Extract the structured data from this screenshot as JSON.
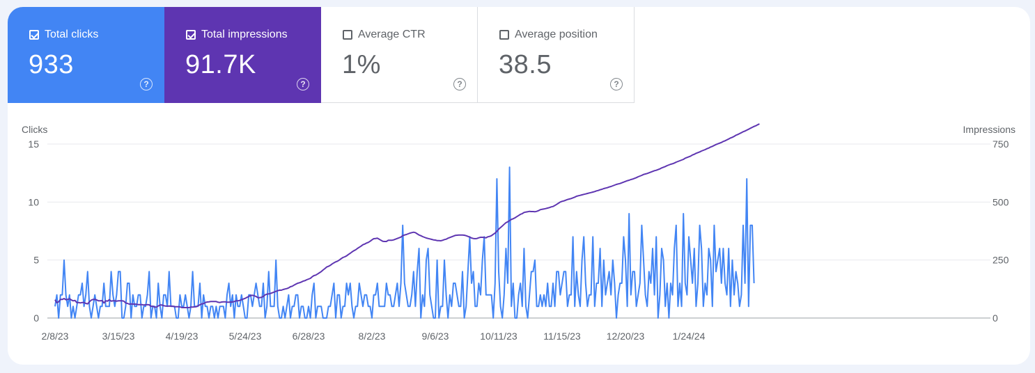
{
  "metrics": [
    {
      "label": "Total clicks",
      "value": "933",
      "checked": true,
      "color": "#4285f4"
    },
    {
      "label": "Total impressions",
      "value": "91.7K",
      "checked": true,
      "color": "#5e35b1"
    },
    {
      "label": "Average CTR",
      "value": "1%",
      "checked": false,
      "color": "#ffffff"
    },
    {
      "label": "Average position",
      "value": "38.5",
      "checked": false,
      "color": "#ffffff"
    }
  ],
  "help_icon": "question-circle-icon",
  "chart_data": {
    "type": "line",
    "ylabel_left": "Clicks",
    "ylabel_right": "Impressions",
    "y_left_ticks": [
      "0",
      "5",
      "10",
      "15"
    ],
    "y_right_ticks": [
      "0",
      "250",
      "500",
      "750"
    ],
    "ylim_left": [
      0,
      15
    ],
    "ylim_right": [
      0,
      750
    ],
    "x_start": "2/8/23",
    "x_tick_labels": [
      "2/8/23",
      "3/15/23",
      "4/19/23",
      "5/24/23",
      "6/28/23",
      "8/2/23",
      "9/6/23",
      "10/11/23",
      "11/15/23",
      "12/20/23",
      "1/24/24"
    ],
    "grid": true,
    "series": [
      {
        "name": "Clicks",
        "axis": "left",
        "color": "#4285f4",
        "values": [
          1,
          2,
          0,
          2,
          2,
          5,
          2,
          1,
          2,
          0,
          1,
          0,
          1,
          2,
          2,
          3,
          1,
          2,
          4,
          1,
          0,
          1,
          2,
          1,
          0,
          1,
          1,
          3,
          1,
          1,
          1,
          4,
          2,
          1,
          2,
          4,
          4,
          0,
          0,
          1,
          3,
          3,
          0,
          2,
          1,
          1,
          2,
          2,
          0,
          1,
          1,
          2,
          4,
          0,
          1,
          1,
          0,
          3,
          1,
          0,
          2,
          2,
          1,
          4,
          1,
          1,
          1,
          0,
          0,
          2,
          1,
          1,
          2,
          1,
          0,
          1,
          4,
          1,
          1,
          1,
          3,
          0,
          2,
          1,
          1,
          0,
          1,
          1,
          0,
          1,
          0,
          1,
          1,
          1,
          0,
          2,
          3,
          1,
          2,
          0,
          2,
          1,
          1,
          2,
          1,
          0,
          0,
          2,
          2,
          1,
          2,
          3,
          2,
          1,
          1,
          3,
          0,
          1,
          4,
          1,
          1,
          1,
          5,
          1,
          0,
          0,
          1,
          0,
          1,
          2,
          0,
          1,
          1,
          2,
          2,
          0,
          1,
          1,
          0,
          0,
          1,
          0,
          2,
          3,
          0,
          1,
          1,
          1,
          0,
          0,
          0,
          1,
          1,
          2,
          3,
          0,
          2,
          2,
          0,
          1,
          1,
          3,
          2,
          3,
          1,
          0,
          1,
          1,
          3,
          2,
          1,
          2,
          2,
          1,
          1,
          0,
          2,
          2,
          3,
          1,
          1,
          1,
          1,
          3,
          2,
          2,
          1,
          1,
          2,
          3,
          1,
          3,
          8,
          3,
          2,
          1,
          1,
          2,
          4,
          1,
          4,
          6,
          0,
          2,
          1,
          5,
          6,
          2,
          1,
          0,
          0,
          5,
          0,
          1,
          1,
          5,
          2,
          0,
          2,
          1,
          3,
          3,
          2,
          1,
          1,
          4,
          0,
          1,
          4,
          7,
          3,
          4,
          1,
          1,
          3,
          2,
          5,
          7,
          2,
          2,
          2,
          2,
          0,
          3,
          12,
          4,
          1,
          0,
          2,
          6,
          3,
          13,
          1,
          3,
          0,
          0,
          2,
          3,
          1,
          6,
          1,
          0,
          2,
          4,
          4,
          5,
          1,
          1,
          2,
          1,
          2,
          1,
          3,
          1,
          1,
          3,
          1,
          4,
          4,
          2,
          3,
          4,
          4,
          1,
          2,
          2,
          7,
          1,
          4,
          2,
          1,
          5,
          7,
          3,
          1,
          2,
          2,
          7,
          1,
          3,
          3,
          6,
          1,
          5,
          2,
          3,
          4,
          2,
          5,
          3,
          0,
          2,
          3,
          3,
          7,
          5,
          1,
          9,
          2,
          4,
          4,
          1,
          2,
          3,
          8,
          5,
          2,
          1,
          4,
          3,
          6,
          2,
          7,
          0,
          2,
          6,
          5,
          1,
          3,
          0,
          3,
          2,
          6,
          8,
          1,
          3,
          1,
          9,
          3,
          2,
          7,
          5,
          3,
          6,
          1,
          3,
          8,
          6,
          1,
          3,
          2,
          6,
          5,
          1,
          8,
          4,
          5,
          6,
          3,
          6,
          3,
          2,
          6,
          1,
          5,
          2,
          4,
          3,
          1,
          2,
          8,
          3,
          12,
          1,
          8,
          8,
          3
        ]
      },
      {
        "name": "Impressions",
        "axis": "right",
        "color": "#5e35b1",
        "values": [
          79,
          66,
          70,
          80,
          80,
          84,
          79,
          80,
          83,
          78,
          74,
          76,
          67,
          67,
          65,
          67,
          67,
          63,
          61,
          70,
          77,
          80,
          80,
          78,
          74,
          74,
          75,
          65,
          74,
          73,
          79,
          73,
          74,
          74,
          73,
          74,
          74,
          74,
          73,
          65,
          63,
          60,
          61,
          60,
          60,
          59,
          58,
          58,
          58,
          56,
          57,
          58,
          57,
          50,
          51,
          47,
          47,
          52,
          56,
          56,
          53,
          52,
          51,
          52,
          51,
          51,
          49,
          49,
          49,
          48,
          45,
          45,
          45,
          45,
          45,
          47,
          47,
          48,
          49,
          53,
          57,
          61,
          62,
          67,
          69,
          70,
          71,
          71,
          71,
          71,
          68,
          67,
          69,
          70,
          70,
          68,
          68,
          69,
          69,
          71,
          74,
          74,
          76,
          79,
          82,
          85,
          89,
          93,
          97,
          98,
          96,
          93,
          88,
          88,
          89,
          93,
          100,
          103,
          104,
          106,
          109,
          112,
          115,
          118,
          120,
          120,
          123,
          125,
          127,
          130,
          135,
          137,
          142,
          146,
          150,
          152,
          155,
          159,
          161,
          165,
          168,
          171,
          178,
          183,
          185,
          190,
          195,
          200,
          207,
          213,
          220,
          223,
          227,
          233,
          238,
          242,
          245,
          250,
          256,
          261,
          264,
          268,
          274,
          279,
          285,
          290,
          294,
          300,
          305,
          310,
          316,
          319,
          323,
          326,
          331,
          337,
          342,
          343,
          344,
          340,
          335,
          331,
          330,
          330,
          335,
          335,
          335,
          337,
          340,
          343,
          346,
          349,
          355,
          358,
          360,
          363,
          366,
          368,
          370,
          368,
          363,
          358,
          355,
          351,
          348,
          345,
          343,
          341,
          339,
          337,
          336,
          334,
          334,
          333,
          335,
          338,
          340,
          344,
          347,
          350,
          353,
          356,
          357,
          358,
          358,
          358,
          357,
          355,
          352,
          349,
          345,
          343,
          342,
          343,
          346,
          348,
          348,
          347,
          346,
          350,
          352,
          355,
          361,
          366,
          374,
          383,
          390,
          397,
          404,
          411,
          415,
          420,
          425,
          428,
          432,
          437,
          442,
          447,
          450,
          455,
          457,
          458,
          460,
          459,
          459,
          458,
          460,
          463,
          467,
          469,
          470,
          472,
          474,
          476,
          479,
          481,
          485,
          490,
          495,
          500,
          503,
          505,
          508,
          511,
          513,
          515,
          518,
          521,
          525,
          527,
          529,
          531,
          533,
          535,
          537,
          539,
          541,
          543,
          545,
          548,
          550,
          553,
          555,
          558,
          560,
          562,
          565,
          567,
          570,
          573,
          576,
          578,
          580,
          583,
          586,
          589,
          592,
          594,
          597,
          599,
          602,
          605,
          609,
          612,
          615,
          619,
          621,
          623,
          626,
          629,
          632,
          635,
          637,
          640,
          643,
          647,
          650,
          653,
          657,
          660,
          663,
          665,
          668,
          672,
          675,
          678,
          681,
          684,
          689,
          692,
          695,
          698,
          703,
          706,
          710,
          713,
          716,
          720,
          723,
          726,
          730,
          733,
          737,
          740,
          744,
          748,
          751,
          754,
          757,
          761,
          764,
          768,
          772,
          776,
          779,
          783,
          788,
          791,
          795,
          799,
          803,
          806,
          810,
          814,
          818,
          822,
          826,
          829,
          833,
          837
        ]
      }
    ]
  }
}
